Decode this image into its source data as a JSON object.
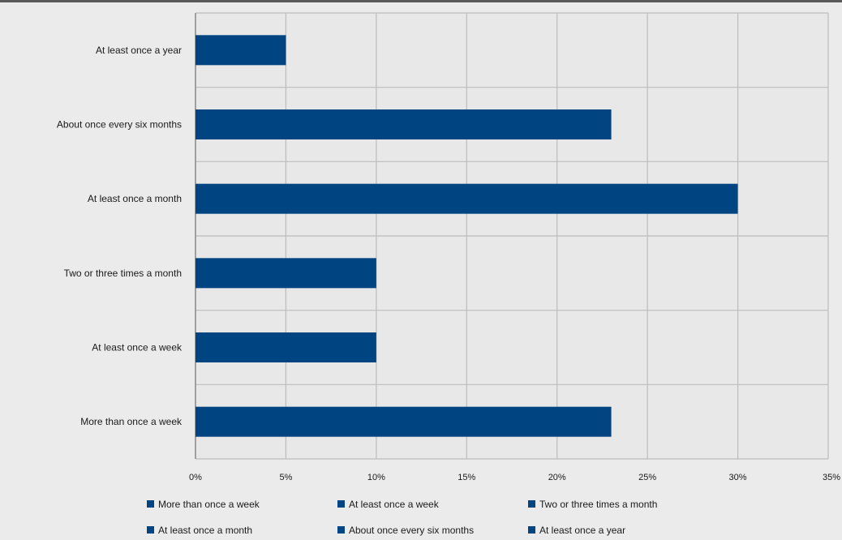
{
  "chart_data": {
    "type": "bar",
    "orientation": "horizontal",
    "categories": [
      "At least once a year",
      "About once every six months",
      "At least once a month",
      "Two or three times a month",
      "At least once a week",
      "More than once a week"
    ],
    "values": [
      0.05,
      0.23,
      0.3,
      0.1,
      0.1,
      0.23
    ],
    "x_ticks": [
      "0%",
      "5%",
      "10%",
      "15%",
      "20%",
      "25%",
      "30%",
      "35%"
    ],
    "xlim": [
      0,
      0.35
    ],
    "grid": true,
    "legend_position": "bottom",
    "legend": [
      "More than once a week",
      "At least once a week",
      "Two or three times a month",
      "At least once a month",
      "About once every six months",
      "At least once a year"
    ],
    "colors": {
      "bar": "#004581",
      "grid": "#bcbcbc",
      "background": "#ebebeb",
      "plot_background": "#e8e8e8"
    }
  }
}
